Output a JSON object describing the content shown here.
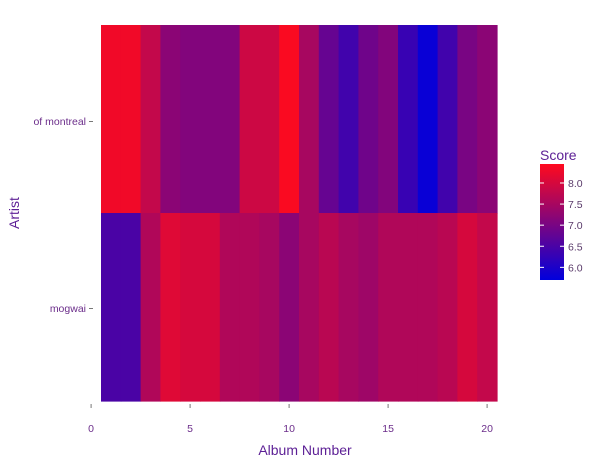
{
  "chart_data": {
    "type": "heatmap",
    "xlabel": "Album Number",
    "ylabel": "Artist",
    "xlim": [
      0.5,
      20.5
    ],
    "x_ticks": [
      0,
      5,
      10,
      15,
      20
    ],
    "rows": [
      "of montreal",
      "mogwai"
    ],
    "x": [
      1,
      2,
      3,
      4,
      5,
      6,
      7,
      8,
      9,
      10,
      11,
      12,
      13,
      14,
      15,
      16,
      17,
      18,
      19,
      20
    ],
    "series": [
      {
        "name": "of montreal",
        "values": [
          8.3,
          8.3,
          7.8,
          7.2,
          7.1,
          7.1,
          7.1,
          7.9,
          7.9,
          8.4,
          7.5,
          6.8,
          6.4,
          6.9,
          7.1,
          6.3,
          5.8,
          6.4,
          7.0,
          7.2
        ]
      },
      {
        "name": "mogwai",
        "values": [
          6.5,
          6.5,
          7.6,
          8.1,
          8.0,
          8.0,
          7.6,
          7.6,
          7.5,
          7.2,
          7.5,
          7.7,
          7.5,
          7.4,
          7.6,
          7.6,
          7.6,
          7.7,
          8.0,
          7.8
        ]
      }
    ],
    "legend": {
      "title": "Score",
      "position": "right",
      "ticks": [
        6.0,
        6.5,
        7.0,
        7.5,
        8.0
      ],
      "tick_labels": [
        "6.0",
        "6.5",
        "7.0",
        "7.5",
        "8.0"
      ],
      "range": [
        5.7,
        8.45
      ]
    },
    "colors": {
      "low": "#0000dd",
      "high": "#ff0a1e",
      "text": "#6b2d8a",
      "title": "#5c1f95"
    }
  }
}
